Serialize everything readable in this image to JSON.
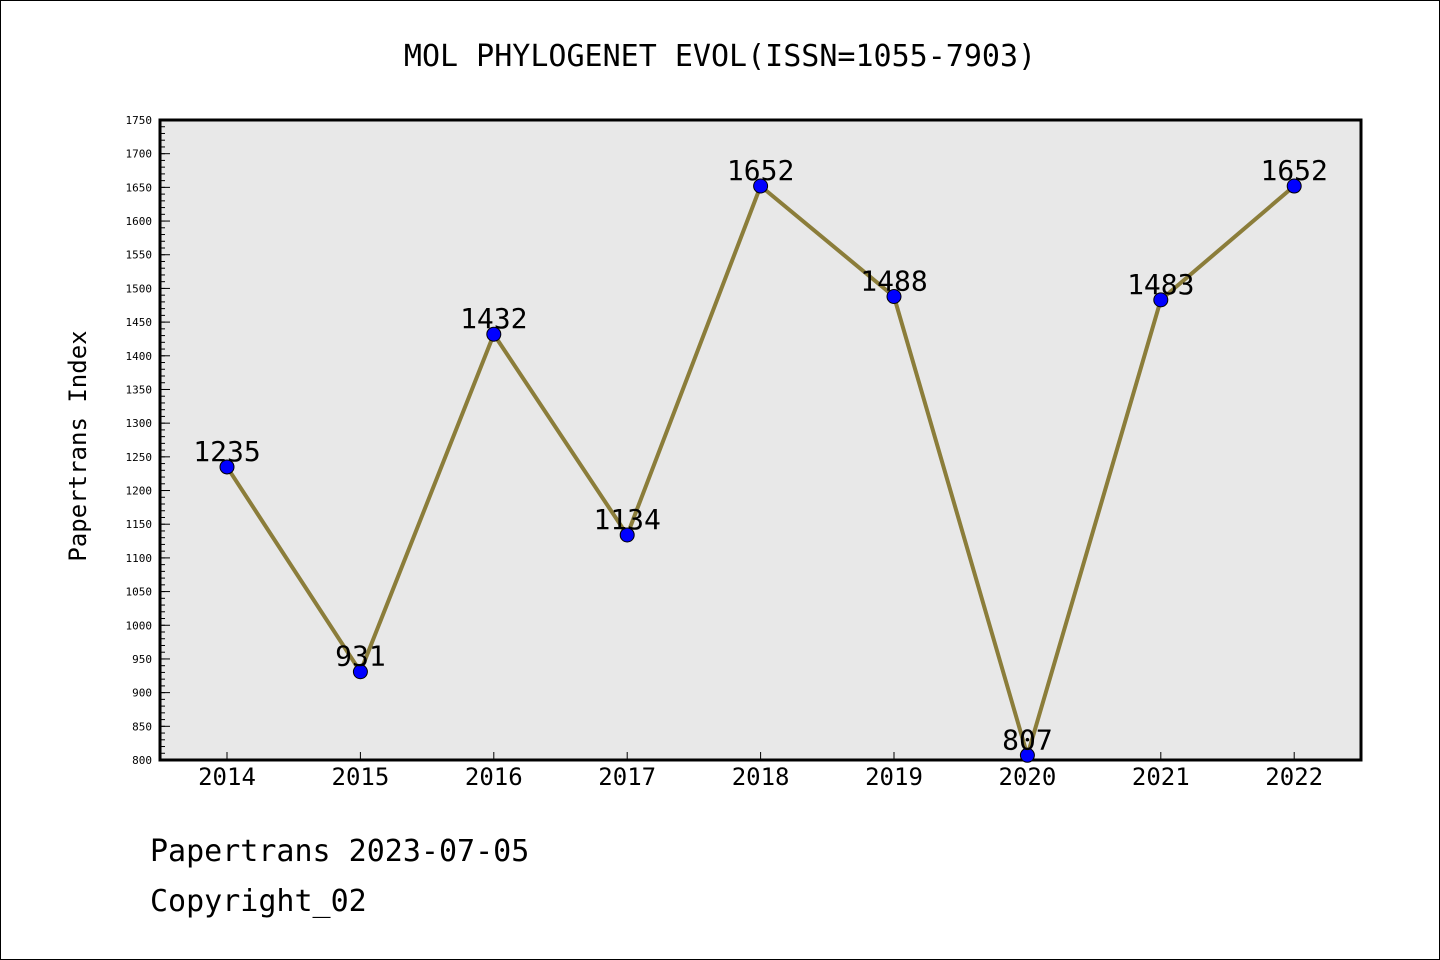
{
  "chart_data": {
    "type": "line",
    "title": "MOL PHYLOGENET EVOL(ISSN=1055-7903)",
    "xlabel": "",
    "ylabel": "Papertrans Index",
    "categories": [
      "2014",
      "2015",
      "2016",
      "2017",
      "2018",
      "2019",
      "2020",
      "2021",
      "2022"
    ],
    "series": [
      {
        "values": [
          1235,
          931,
          1432,
          1134,
          1652,
          1488,
          807,
          1483,
          1652
        ],
        "data_labels": [
          "1235",
          "931",
          "1432",
          "1134",
          "1652",
          "1488",
          "807",
          "1483",
          "1652"
        ]
      }
    ],
    "ylim": [
      800,
      1750
    ],
    "yticks": [
      "800",
      "850",
      "900",
      "950",
      "1000",
      "1050",
      "1100",
      "1150",
      "1200",
      "1250",
      "1300",
      "1350",
      "1400",
      "1450",
      "1500",
      "1550",
      "1600",
      "1650",
      "1700",
      "1750"
    ],
    "grid": false,
    "colors": {
      "line": "#8B7D3A",
      "marker": "#0000FF",
      "plot_background": "#E8E8E8"
    }
  },
  "footer": {
    "date_text": "Papertrans 2023-07-05",
    "copyright_text": "Copyright_02"
  }
}
